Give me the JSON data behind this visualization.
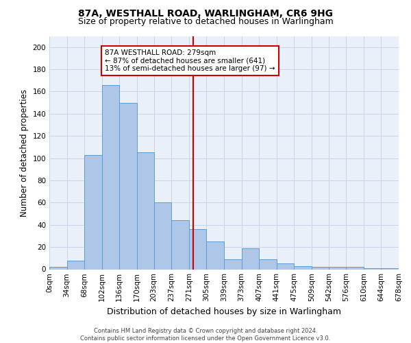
{
  "title_line1": "87A, WESTHALL ROAD, WARLINGHAM, CR6 9HG",
  "title_line2": "Size of property relative to detached houses in Warlingham",
  "xlabel": "Distribution of detached houses by size in Warlingham",
  "ylabel": "Number of detached properties",
  "footnote": "Contains HM Land Registry data © Crown copyright and database right 2024.\nContains public sector information licensed under the Open Government Licence v3.0.",
  "bar_left_edges": [
    0,
    34,
    68,
    102,
    136,
    170,
    203,
    237,
    271,
    305,
    339,
    373,
    407,
    441,
    475,
    509,
    542,
    576,
    610,
    644
  ],
  "bar_heights": [
    2,
    8,
    103,
    166,
    150,
    105,
    60,
    44,
    36,
    25,
    9,
    19,
    9,
    5,
    3,
    2,
    2,
    2,
    1,
    1
  ],
  "bin_width": 34,
  "bar_fill_color": "#aec6e8",
  "bar_edge_color": "#5b9bd5",
  "tick_labels": [
    "0sqm",
    "34sqm",
    "68sqm",
    "102sqm",
    "136sqm",
    "170sqm",
    "203sqm",
    "237sqm",
    "271sqm",
    "305sqm",
    "339sqm",
    "373sqm",
    "407sqm",
    "441sqm",
    "475sqm",
    "509sqm",
    "542sqm",
    "576sqm",
    "610sqm",
    "644sqm",
    "678sqm"
  ],
  "property_size": 279,
  "vline_color": "#cc0000",
  "annotation_text": "87A WESTHALL ROAD: 279sqm\n← 87% of detached houses are smaller (641)\n13% of semi-detached houses are larger (97) →",
  "annotation_box_color": "#ffffff",
  "annotation_box_edge": "#cc0000",
  "ylim": [
    0,
    210
  ],
  "yticks": [
    0,
    20,
    40,
    60,
    80,
    100,
    120,
    140,
    160,
    180,
    200
  ],
  "grid_color": "#c8d4e8",
  "bg_color": "#eaf0f8",
  "title_fontsize": 10,
  "subtitle_fontsize": 9,
  "axis_label_fontsize": 8.5,
  "tick_fontsize": 7.5,
  "footnote_fontsize": 6
}
